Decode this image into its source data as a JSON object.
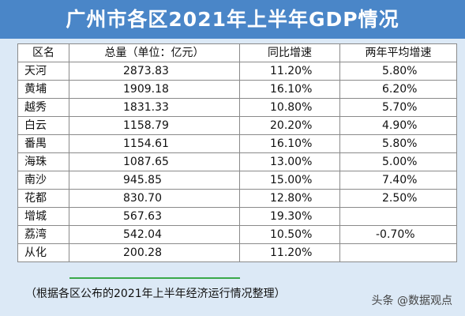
{
  "title": "广州市各区2021年上半年GDP情况",
  "table": {
    "headers": [
      "区名",
      "总量（单位：亿元）",
      "同比增速",
      "两年平均增速"
    ],
    "rows": [
      [
        "天河",
        "2873.83",
        "11.20%",
        "5.80%"
      ],
      [
        "黄埔",
        "1909.18",
        "16.10%",
        "6.20%"
      ],
      [
        "越秀",
        "1831.33",
        "10.80%",
        "5.70%"
      ],
      [
        "白云",
        "1158.79",
        "20.20%",
        "4.90%"
      ],
      [
        "番禺",
        "1154.61",
        "16.10%",
        "5.80%"
      ],
      [
        "海珠",
        "1087.65",
        "13.00%",
        "5.00%"
      ],
      [
        "南沙",
        "945.85",
        "15.00%",
        "7.40%"
      ],
      [
        "花都",
        "830.70",
        "12.80%",
        "2.50%"
      ],
      [
        "增城",
        "567.63",
        "19.30%",
        ""
      ],
      [
        "荔湾",
        "542.04",
        "10.50%",
        "-0.70%"
      ],
      [
        "从化",
        "200.28",
        "11.20%",
        ""
      ]
    ]
  },
  "note": "（根据各区公布的2021年上半年经济运行情况整理）",
  "watermark": "头条 @数据观点",
  "colors": {
    "title_bg": "#4a86c8",
    "frame_bg": "#dce9f6",
    "border": "#8a8a8a"
  }
}
